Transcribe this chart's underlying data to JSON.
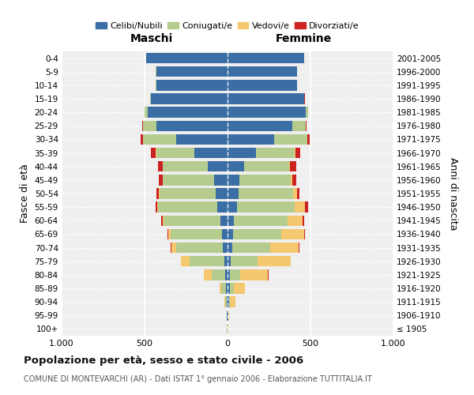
{
  "age_groups": [
    "100+",
    "95-99",
    "90-94",
    "85-89",
    "80-84",
    "75-79",
    "70-74",
    "65-69",
    "60-64",
    "55-59",
    "50-54",
    "45-49",
    "40-44",
    "35-39",
    "30-34",
    "25-29",
    "20-24",
    "15-19",
    "10-14",
    "5-9",
    "0-4"
  ],
  "birth_years": [
    "≤ 1905",
    "1906-1910",
    "1911-1915",
    "1916-1920",
    "1921-1925",
    "1926-1930",
    "1931-1935",
    "1936-1940",
    "1941-1945",
    "1946-1950",
    "1951-1955",
    "1956-1960",
    "1961-1965",
    "1966-1970",
    "1971-1975",
    "1976-1980",
    "1981-1985",
    "1986-1990",
    "1991-1995",
    "1996-2000",
    "2001-2005"
  ],
  "maschi": {
    "celibi": [
      2,
      3,
      5,
      10,
      15,
      20,
      30,
      35,
      45,
      60,
      70,
      80,
      120,
      200,
      310,
      430,
      480,
      460,
      430,
      430,
      490
    ],
    "coniugati": [
      1,
      3,
      10,
      30,
      80,
      210,
      280,
      310,
      340,
      360,
      340,
      310,
      270,
      230,
      200,
      80,
      20,
      5,
      2,
      1,
      1
    ],
    "vedovi": [
      0,
      1,
      5,
      10,
      50,
      50,
      30,
      10,
      5,
      5,
      3,
      2,
      1,
      1,
      1,
      0,
      0,
      0,
      0,
      0,
      0
    ],
    "divorziati": [
      0,
      0,
      0,
      0,
      0,
      2,
      2,
      5,
      10,
      10,
      15,
      20,
      30,
      30,
      15,
      5,
      2,
      1,
      0,
      0,
      0
    ]
  },
  "femmine": {
    "nubili": [
      2,
      3,
      8,
      12,
      15,
      20,
      28,
      32,
      40,
      55,
      65,
      70,
      100,
      170,
      280,
      390,
      470,
      460,
      420,
      420,
      460
    ],
    "coniugate": [
      1,
      2,
      8,
      25,
      60,
      160,
      230,
      290,
      320,
      350,
      330,
      310,
      270,
      235,
      200,
      80,
      15,
      4,
      1,
      1,
      1
    ],
    "vedove": [
      1,
      5,
      30,
      70,
      170,
      200,
      170,
      140,
      90,
      60,
      25,
      10,
      5,
      3,
      2,
      2,
      1,
      0,
      0,
      0,
      0
    ],
    "divorziate": [
      0,
      0,
      0,
      0,
      2,
      2,
      3,
      5,
      10,
      20,
      15,
      25,
      40,
      30,
      15,
      5,
      2,
      1,
      0,
      0,
      0
    ]
  },
  "colors": {
    "celibi_nubili": "#3A6EA5",
    "coniugati": "#B5CC8E",
    "vedovi": "#F5C76E",
    "divorziati": "#CC2222"
  },
  "xlim": 1000,
  "title": "Popolazione per età, sesso e stato civile - 2006",
  "subtitle": "COMUNE DI MONTEVARCHI (AR) - Dati ISTAT 1° gennaio 2006 - Elaborazione TUTTITALIA.IT",
  "ylabel_left": "Fasce di età",
  "ylabel_right": "Anni di nascita",
  "xlabel_left": "Maschi",
  "xlabel_right": "Femmine",
  "background_color": "#efefef",
  "legend_labels": [
    "Celibi/Nubili",
    "Coniugati/e",
    "Vedovi/e",
    "Divorziati/e"
  ]
}
